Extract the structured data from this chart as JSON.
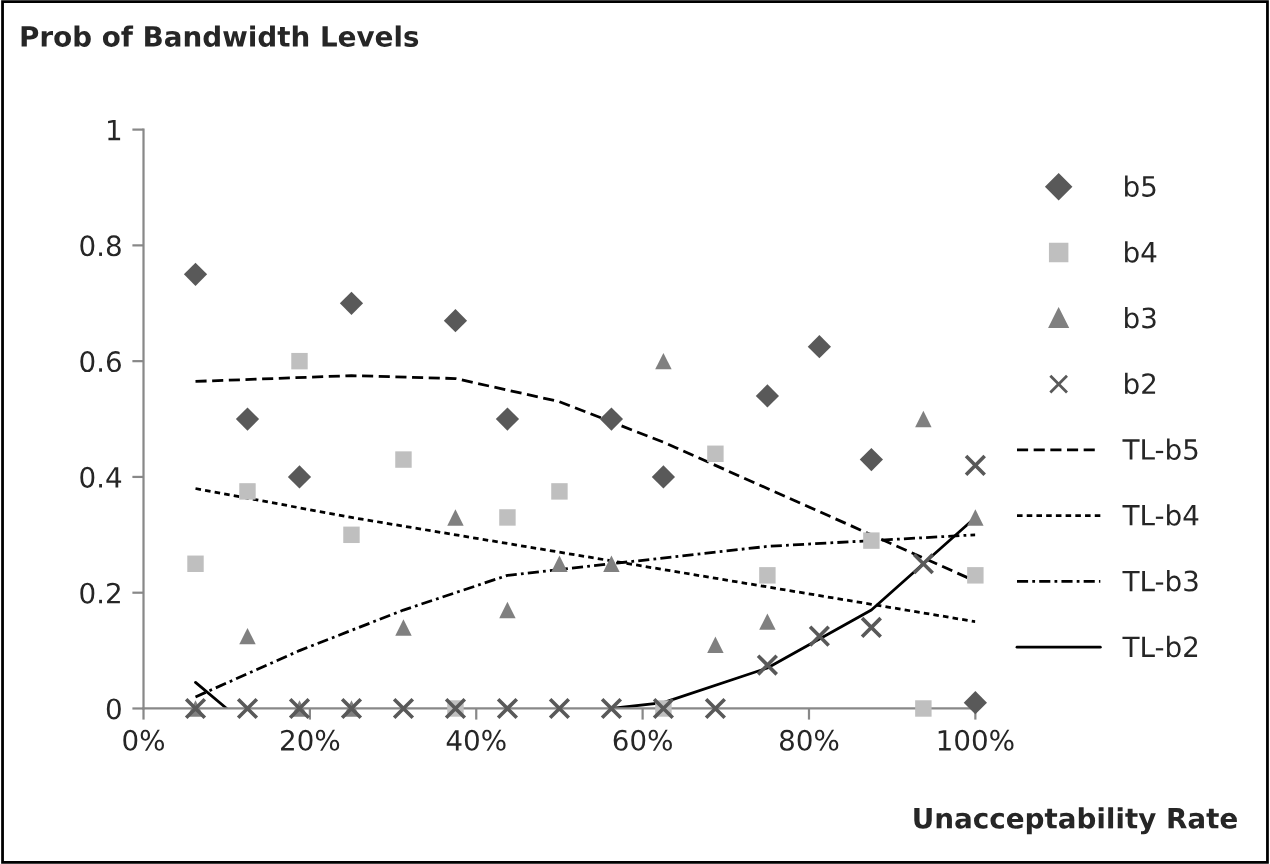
{
  "chart_data": {
    "type": "scatter",
    "ylabel": "Prob of Bandwidth Levels",
    "xlabel": "Unacceptability Rate",
    "x": [
      6.25,
      12.5,
      18.75,
      25,
      31.25,
      37.5,
      43.75,
      50,
      56.25,
      62.5,
      68.75,
      75,
      81.25,
      87.5,
      93.75,
      100
    ],
    "series": [
      {
        "name": "b5",
        "color": "#595959",
        "marker": "diamond",
        "values": [
          0.75,
          0.5,
          0.4,
          0.7,
          null,
          0.67,
          0.5,
          null,
          0.5,
          0.4,
          null,
          0.54,
          0.625,
          0.43,
          null,
          0.01
        ]
      },
      {
        "name": "b4",
        "color": "#bfbfbf",
        "marker": "square",
        "values": [
          0.25,
          0.375,
          0.6,
          0.3,
          0.43,
          0,
          0.33,
          0.375,
          null,
          0,
          0.44,
          0.23,
          null,
          0.29,
          0,
          0.23
        ]
      },
      {
        "name": "b3",
        "color": "#808080",
        "marker": "triangle",
        "values": [
          0,
          0.125,
          0,
          0,
          0.14,
          0.33,
          0.17,
          0.25,
          0.25,
          0.6,
          0.11,
          0.15,
          null,
          null,
          0.5,
          0.33
        ]
      },
      {
        "name": "b2",
        "color": "#595959",
        "marker": "cross",
        "values": [
          0,
          0,
          0,
          0,
          0,
          0,
          0,
          0,
          0,
          0,
          0,
          0.075,
          0.125,
          0.14,
          0.25,
          0.42
        ]
      },
      {
        "name": "TL-b5",
        "type": "line",
        "color": "#000000",
        "line_style": "dashed",
        "x": [
          6.25,
          25,
          37.5,
          50,
          62.5,
          75,
          87.5,
          100
        ],
        "values": [
          0.565,
          0.575,
          0.57,
          0.53,
          0.46,
          0.38,
          0.3,
          0.22
        ]
      },
      {
        "name": "TL-b4",
        "type": "line",
        "color": "#000000",
        "line_style": "dotted",
        "x": [
          6.25,
          25,
          50,
          62.5,
          75,
          87.5,
          100
        ],
        "values": [
          0.38,
          0.33,
          0.27,
          0.24,
          0.21,
          0.18,
          0.15
        ]
      },
      {
        "name": "TL-b3",
        "type": "line",
        "color": "#000000",
        "line_style": "dashdot",
        "x": [
          6.25,
          18.75,
          31.25,
          43.75,
          56.25,
          75,
          100
        ],
        "values": [
          0.02,
          0.1,
          0.17,
          0.23,
          0.25,
          0.28,
          0.3
        ]
      },
      {
        "name": "TL-b2",
        "type": "line",
        "color": "#000000",
        "line_style": "solid",
        "x": [
          6.25,
          10,
          11,
          56.25,
          62.5,
          75,
          87.5,
          100
        ],
        "values": [
          0.045,
          0,
          null,
          0,
          0.01,
          0.07,
          0.17,
          0.33
        ]
      }
    ],
    "xlim": [
      0,
      100
    ],
    "xticks": [
      {
        "value": 0,
        "label": "0%"
      },
      {
        "value": 20,
        "label": "20%"
      },
      {
        "value": 40,
        "label": "40%"
      },
      {
        "value": 60,
        "label": "60%"
      },
      {
        "value": 80,
        "label": "80%"
      },
      {
        "value": 100,
        "label": "100%"
      }
    ],
    "ylim": [
      0,
      1
    ],
    "yticks": [
      0,
      0.2,
      0.4,
      0.6,
      0.8,
      1
    ],
    "grid": false,
    "legend": "right"
  }
}
